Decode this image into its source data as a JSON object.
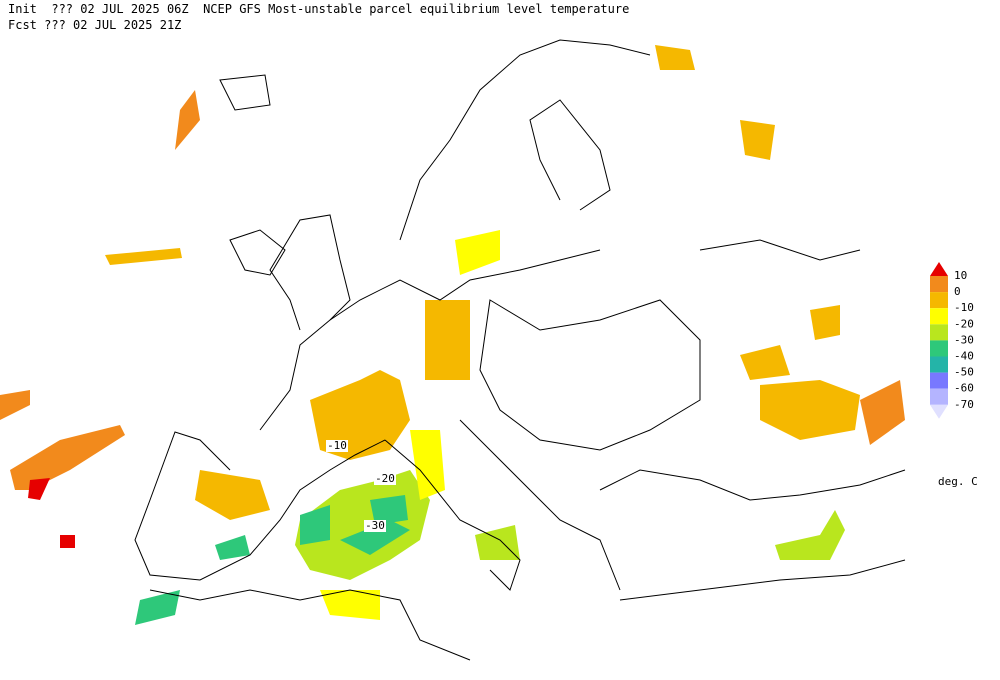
{
  "header": {
    "line1": "Init  ??? 02 JUL 2025 06Z  NCEP GFS Most-unstable parcel equilibrium level temperature",
    "line2": "Fcst ??? 02 JUL 2025 21Z"
  },
  "legend": {
    "labels": [
      "10",
      "0",
      "-10",
      "-20",
      "-30",
      "-40",
      "-50",
      "-60",
      "-70"
    ],
    "colors": [
      "#e60000",
      "#f28a1c",
      "#f5b800",
      "#ffff00",
      "#b9e61e",
      "#2ec87a",
      "#24b4a8",
      "#7878ff",
      "#b4b4ff",
      "#e0e0ff"
    ],
    "units": "deg. C"
  },
  "contour_labels": [
    "-10",
    "-20",
    "-30"
  ]
}
